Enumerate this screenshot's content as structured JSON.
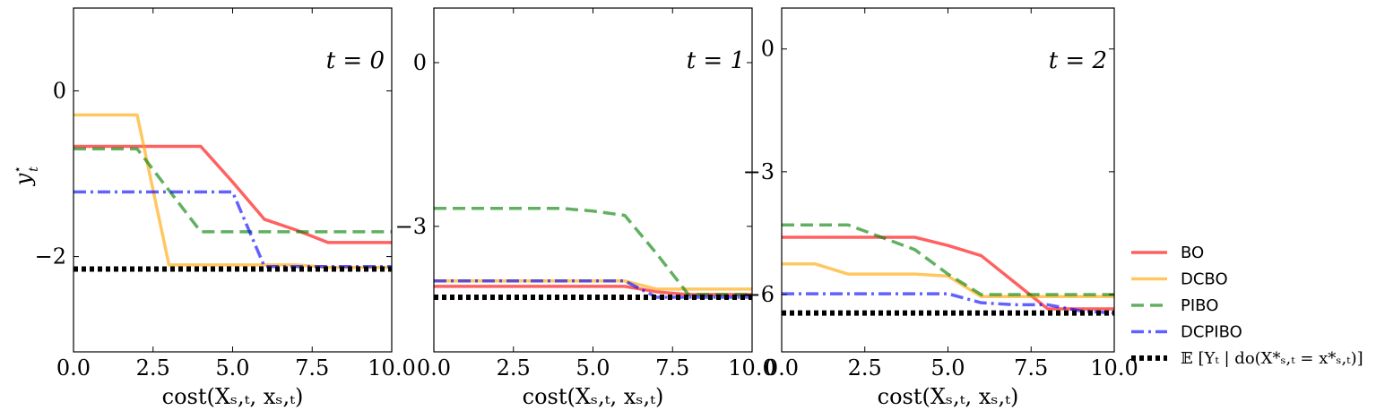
{
  "chart_data": {
    "type": "line",
    "ylabel": "y*_t",
    "legend_position": "right-bottom",
    "grid": false,
    "series_styles": [
      {
        "key": "BO",
        "color": "#ff0000",
        "dash": "solid"
      },
      {
        "key": "DCBO",
        "color": "#ffa500",
        "dash": "solid"
      },
      {
        "key": "PIBO",
        "color": "#008000",
        "dash": "dashed"
      },
      {
        "key": "DCPIBO",
        "color": "#0000ff",
        "dash": "dashdot"
      },
      {
        "key": "truth",
        "color": "#000000",
        "dash": "dotted"
      }
    ],
    "legend": {
      "entries": [
        {
          "key": "BO",
          "label": "BO"
        },
        {
          "key": "DCBO",
          "label": "DCBO"
        },
        {
          "key": "PIBO",
          "label": "PIBO"
        },
        {
          "key": "DCPIBO",
          "label": "DCPIBO"
        },
        {
          "key": "truth",
          "label": "𝔼 [Yₜ | do(X*ₛ,ₜ = x*ₛ,ₜ)]"
        }
      ]
    },
    "panels": [
      {
        "label": "t = 0",
        "xlabel": "cost(Xₛ,ₜ, xₛ,ₜ)",
        "xlim": [
          0,
          10
        ],
        "ylim": [
          -3.15,
          1.0
        ],
        "xticks": [
          0,
          2.5,
          5,
          7.5,
          10
        ],
        "xtick_labels": [
          "0.0",
          "2.5",
          "5.0",
          "7.5",
          "10.0"
        ],
        "yticks": [
          0,
          -2
        ],
        "ytick_labels": [
          "0",
          "−2"
        ],
        "series": [
          {
            "key": "BO",
            "x": [
              0,
              1,
              2,
              3,
              4,
              5,
              6,
              7,
              8,
              9,
              10
            ],
            "y": [
              -0.67,
              -0.67,
              -0.67,
              -0.67,
              -0.67,
              -1.1,
              -1.55,
              -1.68,
              -1.83,
              -1.83,
              -1.83
            ]
          },
          {
            "key": "DCBO",
            "x": [
              0,
              1,
              2,
              3,
              4,
              5,
              6,
              7,
              8,
              9,
              10
            ],
            "y": [
              -0.29,
              -0.29,
              -0.29,
              -2.1,
              -2.1,
              -2.1,
              -2.1,
              -2.1,
              -2.13,
              -2.13,
              -2.13
            ]
          },
          {
            "key": "PIBO",
            "x": [
              0,
              1,
              2,
              3,
              4,
              5,
              6,
              7,
              8,
              9,
              10
            ],
            "y": [
              -0.7,
              -0.7,
              -0.7,
              -1.2,
              -1.7,
              -1.7,
              -1.7,
              -1.7,
              -1.7,
              -1.7,
              -1.7
            ]
          },
          {
            "key": "DCPIBO",
            "x": [
              0,
              1,
              2,
              3,
              4,
              5,
              6,
              7,
              8,
              9,
              10
            ],
            "y": [
              -1.22,
              -1.22,
              -1.22,
              -1.22,
              -1.22,
              -1.22,
              -2.12,
              -2.12,
              -2.12,
              -2.12,
              -2.12
            ]
          },
          {
            "key": "truth",
            "x": [
              0,
              10
            ],
            "y": [
              -2.15,
              -2.15
            ]
          }
        ]
      },
      {
        "label": "t = 1",
        "xlabel": "cost(Xₛ,ₜ, xₛ,ₜ)",
        "xlim": [
          0,
          10
        ],
        "ylim": [
          -5.3,
          1.0
        ],
        "xticks": [
          0,
          2.5,
          5,
          7.5,
          10
        ],
        "xtick_labels": [
          "0.0",
          "2.5",
          "5.0",
          "7.5",
          "10.0"
        ],
        "yticks": [
          0,
          -3
        ],
        "ytick_labels": [
          "0",
          "−3"
        ],
        "series": [
          {
            "key": "BO",
            "x": [
              0,
              1,
              2,
              3,
              4,
              5,
              6,
              7,
              8,
              9,
              10
            ],
            "y": [
              -4.1,
              -4.1,
              -4.1,
              -4.1,
              -4.1,
              -4.1,
              -4.1,
              -4.2,
              -4.25,
              -4.25,
              -4.25
            ]
          },
          {
            "key": "DCBO",
            "x": [
              0,
              1,
              2,
              3,
              4,
              5,
              6,
              7,
              8,
              9,
              10
            ],
            "y": [
              -4.0,
              -4.0,
              -4.0,
              -4.0,
              -4.0,
              -4.0,
              -4.0,
              -4.15,
              -4.15,
              -4.15,
              -4.15
            ]
          },
          {
            "key": "PIBO",
            "x": [
              0,
              1,
              2,
              3,
              4,
              5,
              6,
              7,
              8,
              9,
              10
            ],
            "y": [
              -2.67,
              -2.67,
              -2.67,
              -2.67,
              -2.67,
              -2.72,
              -2.8,
              -3.5,
              -4.25,
              -4.25,
              -4.25
            ]
          },
          {
            "key": "DCPIBO",
            "x": [
              0,
              1,
              2,
              3,
              4,
              5,
              6,
              7,
              8,
              9,
              10
            ],
            "y": [
              -4.0,
              -4.0,
              -4.0,
              -4.0,
              -4.0,
              -4.0,
              -4.0,
              -4.3,
              -4.3,
              -4.3,
              -4.3
            ]
          },
          {
            "key": "truth",
            "x": [
              0,
              10
            ],
            "y": [
              -4.3,
              -4.3
            ]
          }
        ]
      },
      {
        "label": "t = 2",
        "xlabel": "cost(Xₛ,ₜ, xₛ,ₜ)",
        "xlim": [
          0,
          10
        ],
        "ylim": [
          -7.4,
          1.0
        ],
        "xticks": [
          0,
          2.5,
          5,
          7.5,
          10
        ],
        "xtick_labels": [
          "0.0",
          "2.5",
          "5.0",
          "7.5",
          "10.0"
        ],
        "yticks": [
          0,
          -3,
          -6
        ],
        "ytick_labels": [
          "0",
          "−3",
          "−6"
        ],
        "series": [
          {
            "key": "BO",
            "x": [
              0,
              1,
              2,
              3,
              4,
              5,
              6,
              7,
              8,
              9,
              10
            ],
            "y": [
              -4.6,
              -4.6,
              -4.6,
              -4.6,
              -4.6,
              -4.8,
              -5.05,
              -5.7,
              -6.35,
              -6.35,
              -6.35
            ]
          },
          {
            "key": "DCBO",
            "x": [
              0,
              1,
              2,
              3,
              4,
              5,
              6,
              7,
              8,
              9,
              10
            ],
            "y": [
              -5.25,
              -5.25,
              -5.5,
              -5.5,
              -5.5,
              -5.55,
              -6.05,
              -6.05,
              -6.05,
              -6.05,
              -6.05
            ]
          },
          {
            "key": "PIBO",
            "x": [
              0,
              1,
              2,
              3,
              4,
              5,
              6,
              7,
              8,
              9,
              10
            ],
            "y": [
              -4.3,
              -4.3,
              -4.3,
              -4.6,
              -4.9,
              -5.5,
              -6.0,
              -6.0,
              -6.0,
              -6.0,
              -6.0
            ]
          },
          {
            "key": "DCPIBO",
            "x": [
              0,
              1,
              2,
              3,
              4,
              5,
              6,
              7,
              8,
              9,
              10
            ],
            "y": [
              -5.98,
              -5.98,
              -5.98,
              -5.98,
              -5.98,
              -5.98,
              -6.2,
              -6.25,
              -6.25,
              -6.4,
              -6.45
            ]
          },
          {
            "key": "truth",
            "x": [
              0,
              10
            ],
            "y": [
              -6.45,
              -6.45
            ]
          }
        ]
      }
    ]
  }
}
